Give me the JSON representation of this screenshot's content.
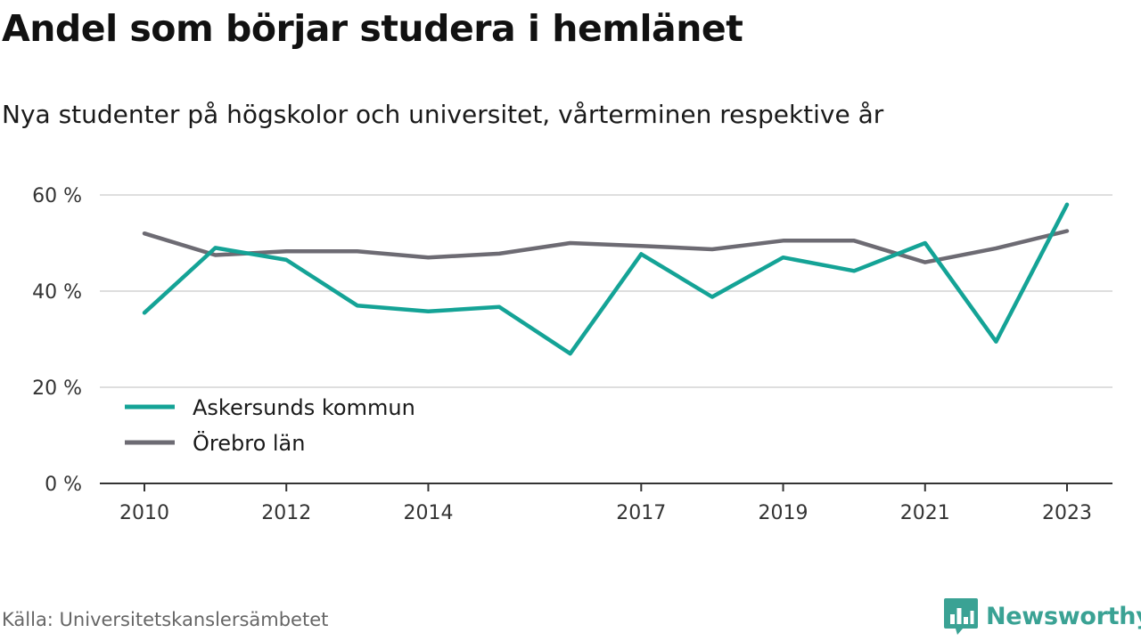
{
  "header": {
    "title": "Andel som börjar studera i hemlänet",
    "subtitle": "Nya studenter på högskolor och universitet, vårterminen respektive år"
  },
  "footer": {
    "source": "Källa: Universitetskanslersämbetet",
    "brand": "Newsworthy",
    "brand_icon": "bar-chart-speech-bubble-icon",
    "brand_color": "#3aa294"
  },
  "chart_data": {
    "type": "line",
    "x": [
      2010,
      2011,
      2012,
      2013,
      2014,
      2015,
      2016,
      2017,
      2018,
      2019,
      2020,
      2021,
      2022,
      2023
    ],
    "x_tick_labels": [
      "2010",
      "2012",
      "2014",
      "2017",
      "2019",
      "2021",
      "2023"
    ],
    "y_tick_labels": [
      "0 %",
      "20 %",
      "40 %",
      "60 %"
    ],
    "ylim": [
      0,
      60
    ],
    "y_ticks": [
      0,
      20,
      40,
      60
    ],
    "grid": true,
    "legend_position": "bottom-left",
    "series": [
      {
        "name": "Askersunds kommun",
        "color": "#14a396",
        "values": [
          35.5,
          49.0,
          46.5,
          37.0,
          35.8,
          36.7,
          27.0,
          47.7,
          38.8,
          47.0,
          44.2,
          50.0,
          29.5,
          58.0
        ]
      },
      {
        "name": "Örebro län",
        "color": "#6d6b73",
        "values": [
          52.0,
          47.5,
          48.3,
          48.3,
          47.0,
          47.8,
          50.0,
          49.4,
          48.7,
          50.5,
          50.5,
          46.0,
          48.9,
          52.5
        ]
      }
    ]
  }
}
